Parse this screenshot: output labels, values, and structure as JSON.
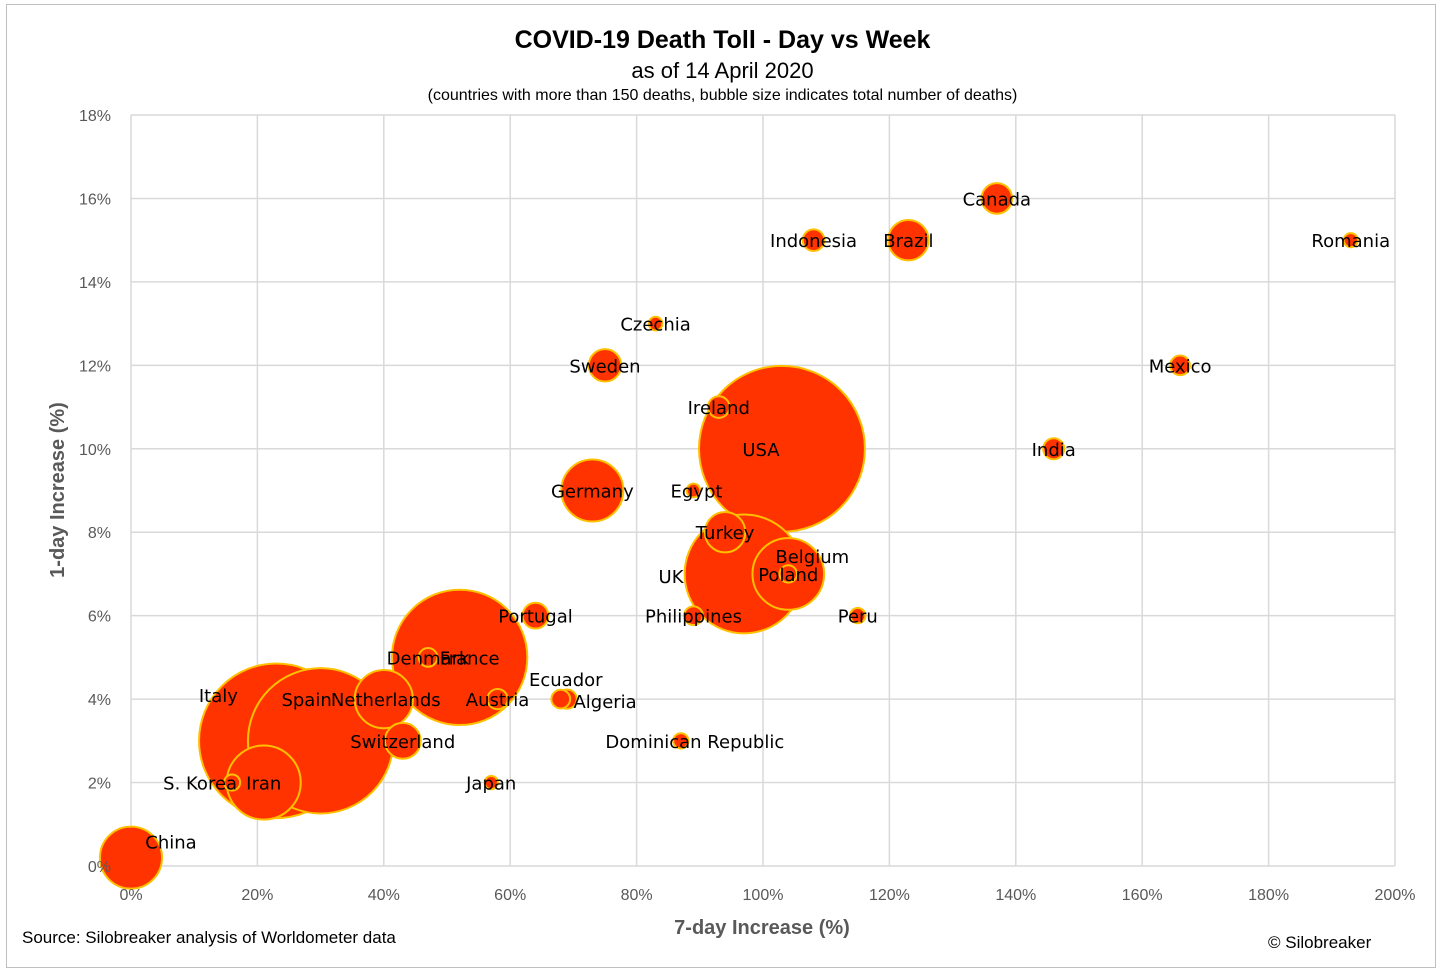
{
  "chart_data": {
    "type": "bubble",
    "title": "COVID-19 Death Toll - Day vs Week",
    "subtitle": "as of 14 April 2020",
    "note": "(countries with more than 150 deaths, bubble size indicates total number of deaths)",
    "xlabel": "7-day Increase (%)",
    "ylabel": "1-day Increase (%)",
    "xlim": [
      0,
      200
    ],
    "ylim": [
      0,
      18
    ],
    "x_ticks": [
      "0%",
      "20%",
      "40%",
      "60%",
      "80%",
      "100%",
      "120%",
      "140%",
      "160%",
      "180%",
      "200%"
    ],
    "y_ticks": [
      "0%",
      "2%",
      "4%",
      "6%",
      "8%",
      "10%",
      "12%",
      "14%",
      "16%",
      "18%"
    ],
    "grid": true,
    "colors": {
      "fill": "#ff3300",
      "edge": "#ffc000",
      "grid": "#d9d9d9",
      "axis_text": "#595959"
    },
    "points": [
      {
        "name": "USA",
        "x": 103,
        "y": 10,
        "size": 23600
      },
      {
        "name": "Italy",
        "x": 23,
        "y": 3,
        "size": 20500
      },
      {
        "name": "Spain",
        "x": 30,
        "y": 3,
        "size": 18100
      },
      {
        "name": "France",
        "x": 52,
        "y": 5,
        "size": 15700
      },
      {
        "name": "UK",
        "x": 97,
        "y": 7,
        "size": 12100
      },
      {
        "name": "Iran",
        "x": 21,
        "y": 2,
        "size": 4700
      },
      {
        "name": "Belgium",
        "x": 104,
        "y": 7,
        "size": 4400
      },
      {
        "name": "Netherlands",
        "x": 40,
        "y": 4,
        "size": 2900
      },
      {
        "name": "Germany",
        "x": 73,
        "y": 9,
        "size": 3300
      },
      {
        "name": "Switzerland",
        "x": 43,
        "y": 3,
        "size": 1100
      },
      {
        "name": "Turkey",
        "x": 94,
        "y": 8,
        "size": 1400
      },
      {
        "name": "Brazil",
        "x": 123,
        "y": 15,
        "size": 1400
      },
      {
        "name": "Sweden",
        "x": 75,
        "y": 12,
        "size": 900
      },
      {
        "name": "China",
        "x": 0,
        "y": 0.2,
        "size": 3300
      },
      {
        "name": "Canada",
        "x": 137,
        "y": 16,
        "size": 800
      },
      {
        "name": "Portugal",
        "x": 64,
        "y": 6,
        "size": 570
      },
      {
        "name": "Ireland",
        "x": 93,
        "y": 11,
        "size": 400
      },
      {
        "name": "Indonesia",
        "x": 108,
        "y": 15,
        "size": 400
      },
      {
        "name": "India",
        "x": 146,
        "y": 10,
        "size": 380
      },
      {
        "name": "Algeria",
        "x": 69,
        "y": 4,
        "size": 320
      },
      {
        "name": "Ecuador",
        "x": 68,
        "y": 4,
        "size": 300
      },
      {
        "name": "Austria",
        "x": 58,
        "y": 4,
        "size": 350
      },
      {
        "name": "Mexico",
        "x": 166,
        "y": 12,
        "size": 330
      },
      {
        "name": "Denmark",
        "x": 47,
        "y": 5,
        "size": 300
      },
      {
        "name": "Philippines",
        "x": 89,
        "y": 6,
        "size": 300
      },
      {
        "name": "Poland",
        "x": 104,
        "y": 7,
        "size": 260
      },
      {
        "name": "Peru",
        "x": 115,
        "y": 6,
        "size": 200
      },
      {
        "name": "S. Korea",
        "x": 16,
        "y": 2,
        "size": 220
      },
      {
        "name": "Egypt",
        "x": 89,
        "y": 9,
        "size": 160
      },
      {
        "name": "Romania",
        "x": 193,
        "y": 15,
        "size": 170
      },
      {
        "name": "Czechia",
        "x": 83,
        "y": 13,
        "size": 160
      },
      {
        "name": "Dominican Republic",
        "x": 87,
        "y": 3,
        "size": 200
      },
      {
        "name": "Japan",
        "x": 57,
        "y": 2,
        "size": 150
      }
    ]
  },
  "footer": {
    "source": "Source: Silobreaker analysis of Worldometer data",
    "copyright": "© Silobreaker"
  }
}
